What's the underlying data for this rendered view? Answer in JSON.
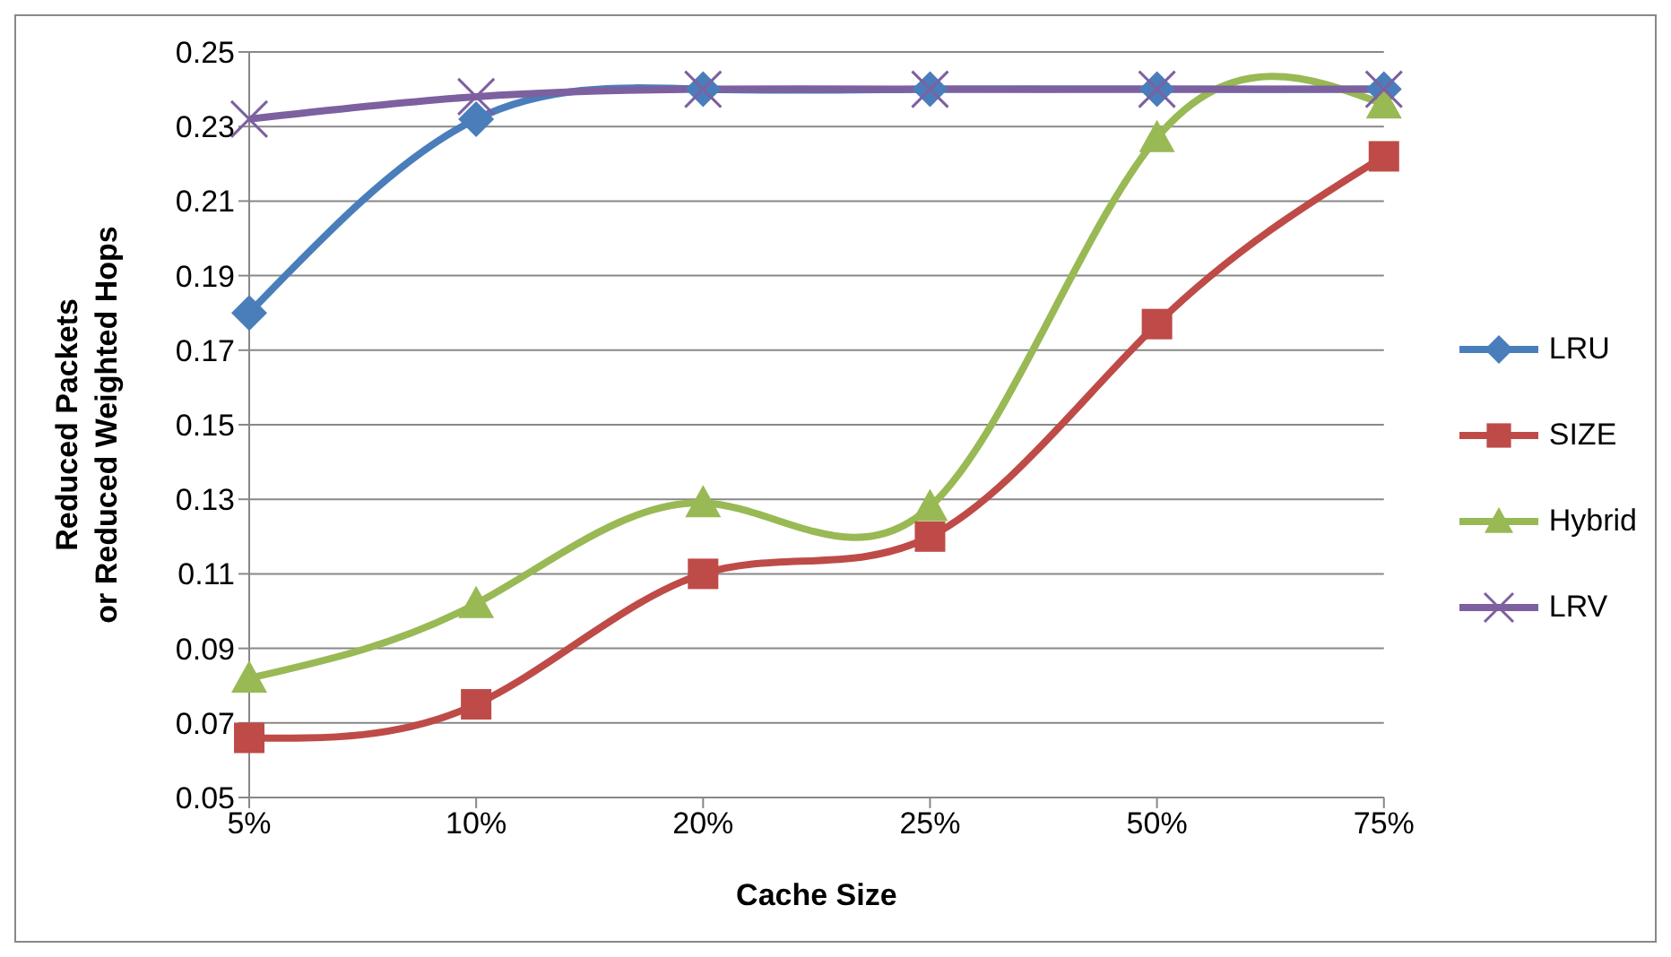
{
  "chart_data": {
    "type": "line",
    "xlabel": "Cache Size",
    "ylabel": "Reduced Packets or Reduced Weighted Hops",
    "categories": [
      "5%",
      "10%",
      "20%",
      "25%",
      "50%",
      "75%"
    ],
    "series": [
      {
        "name": "LRU",
        "color": "#4a7ebb",
        "marker": "diamond",
        "values": [
          0.18,
          0.232,
          0.24,
          0.24,
          0.24,
          0.24
        ]
      },
      {
        "name": "SIZE",
        "color": "#be4b48",
        "marker": "square",
        "values": [
          0.066,
          0.075,
          0.11,
          0.12,
          0.177,
          0.222
        ]
      },
      {
        "name": "Hybrid",
        "color": "#98b954",
        "marker": "triangle",
        "values": [
          0.082,
          0.102,
          0.129,
          0.128,
          0.227,
          0.236
        ]
      },
      {
        "name": "LRV",
        "color": "#7d60a0",
        "marker": "cross",
        "values": [
          0.232,
          0.238,
          0.24,
          0.24,
          0.24,
          0.24
        ]
      }
    ],
    "ylim": [
      0.05,
      0.25
    ],
    "yticks": [
      0.05,
      0.07,
      0.09,
      0.11,
      0.13,
      0.15,
      0.17,
      0.19,
      0.21,
      0.23,
      0.25
    ],
    "grid": "y",
    "legend": "right",
    "line_style": "solid"
  }
}
